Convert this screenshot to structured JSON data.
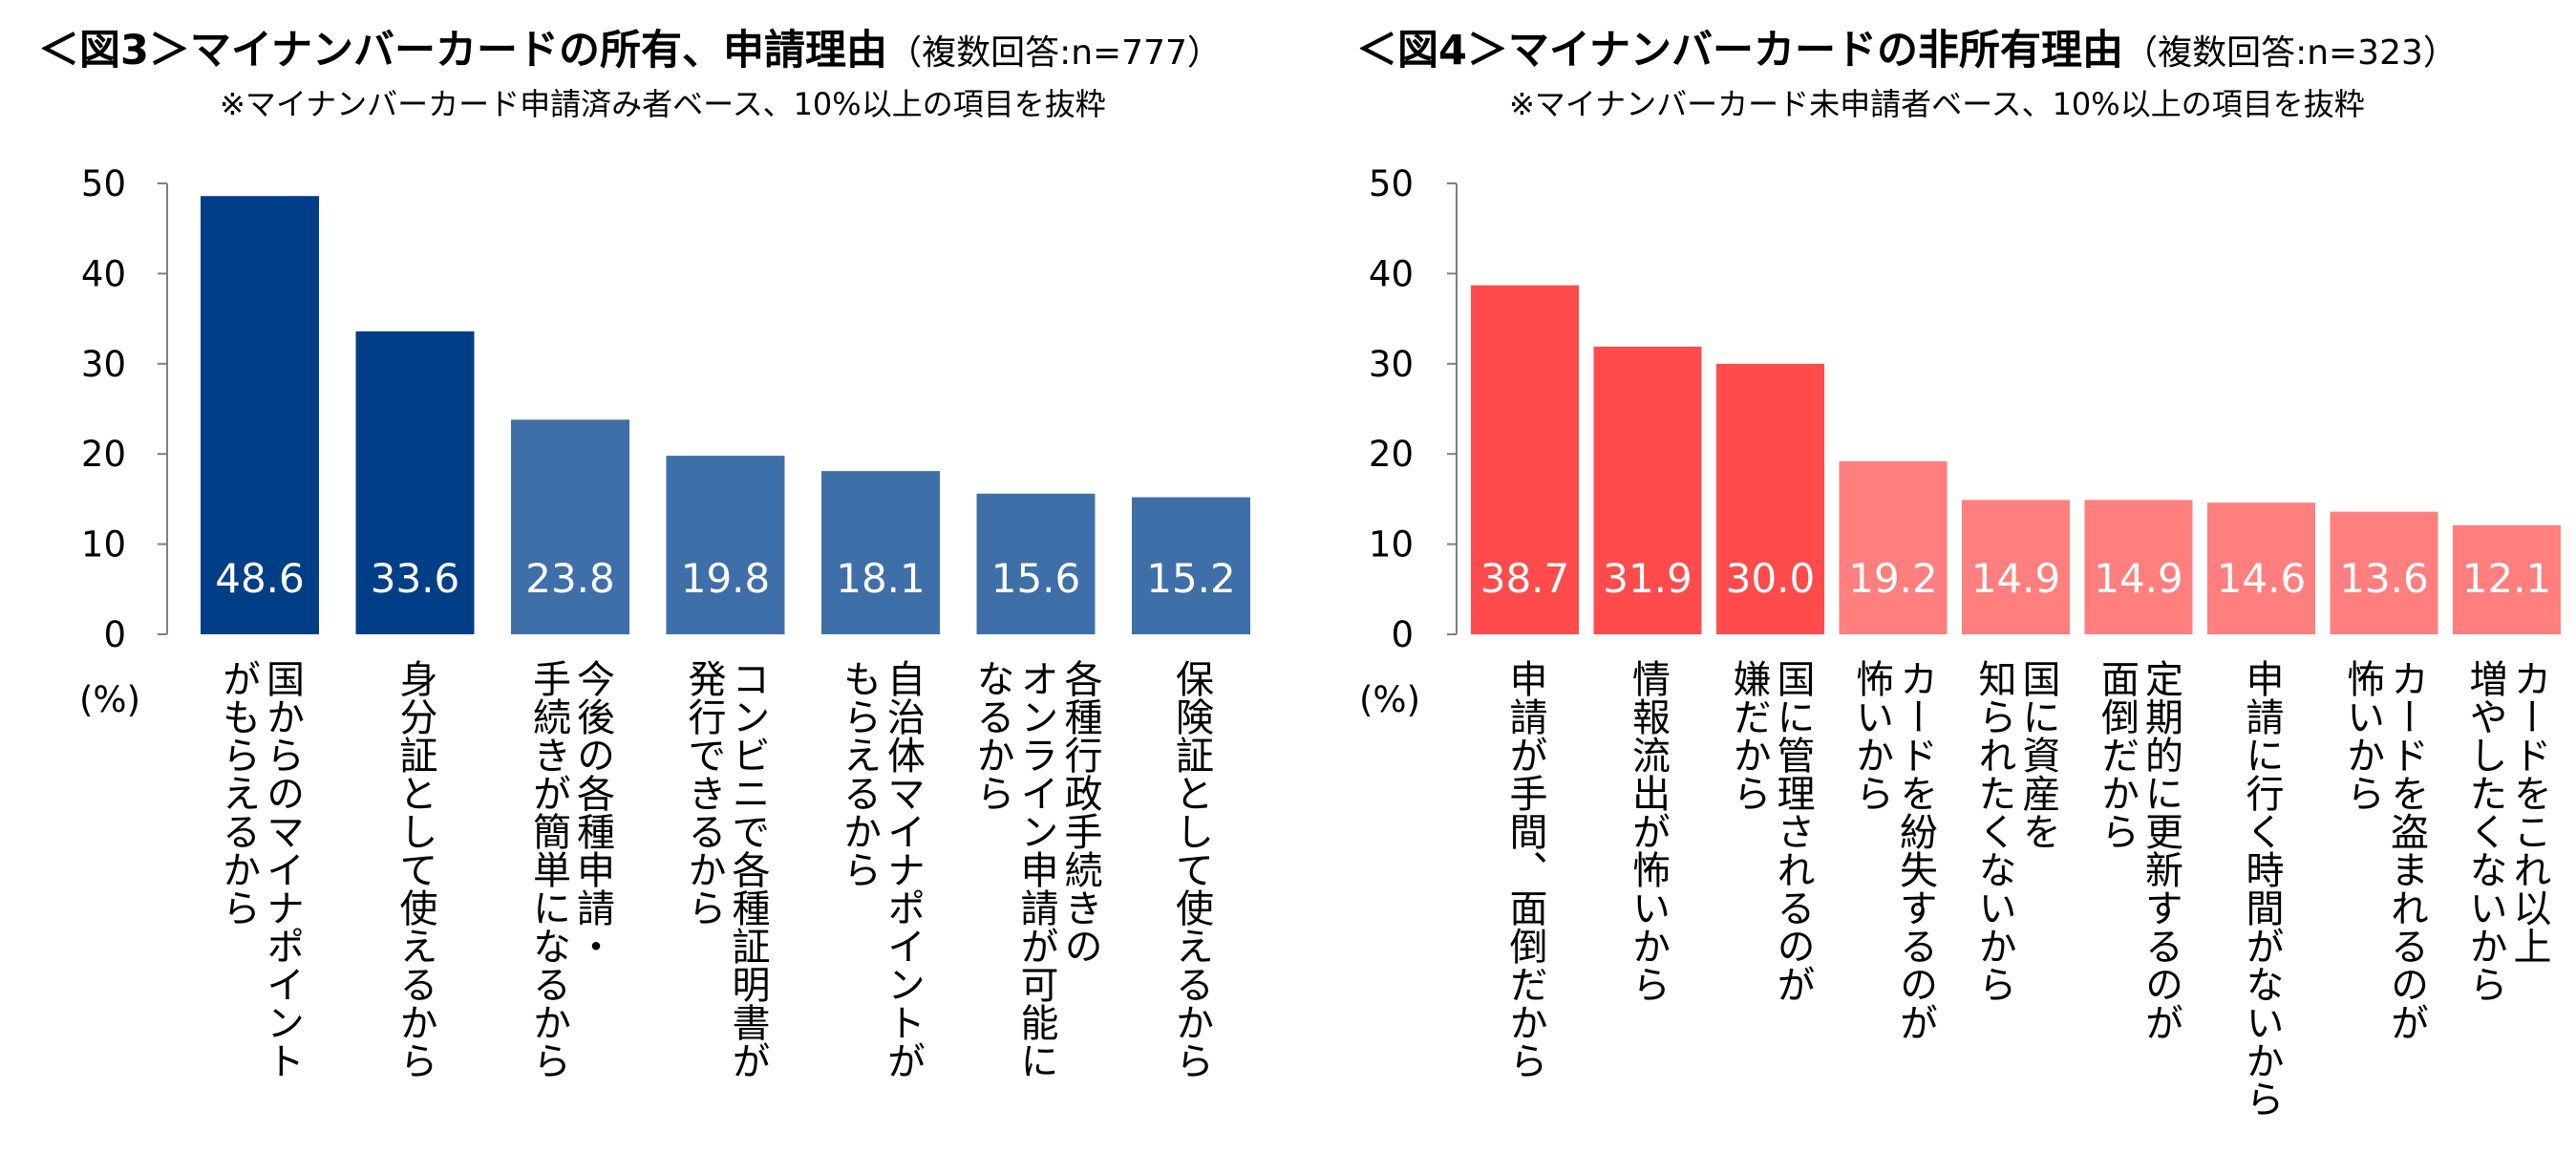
{
  "charts": [
    {
      "id": "left",
      "title": "＜図3＞マイナンバーカードの所有、申請理由",
      "title_sub": "（複数回答:n=777）",
      "note": "※マイナンバーカード申請済み者ベース、10%以上の項目を抜粋",
      "unit": "(%)",
      "y_ticks": [
        "0",
        "10",
        "20",
        "30",
        "40",
        "50"
      ]
    },
    {
      "id": "right",
      "title": "＜図4＞マイナンバーカードの非所有理由",
      "title_sub": "（複数回答:n=323）",
      "note": "※マイナンバーカード未申請者ベース、10%以上の項目を抜粋",
      "unit": "(%)",
      "y_ticks": [
        "0",
        "10",
        "20",
        "30",
        "40",
        "50"
      ]
    }
  ],
  "chart_data": [
    {
      "type": "bar",
      "title": "＜図3＞マイナンバーカードの所有、申請理由",
      "ylabel": "(%)",
      "ylim": [
        0,
        50
      ],
      "grid": false,
      "categories": [
        [
          "国からのマイナポイント",
          "がもらえるから"
        ],
        [
          "身分証として使えるから"
        ],
        [
          "今後の各種申請・",
          "手続きが簡単になるから"
        ],
        [
          "コンビニで各種証明書が",
          "発行できるから"
        ],
        [
          "自治体マイナポイントが",
          "もらえるから"
        ],
        [
          "各種行政手続きの",
          "オンライン申請が可能に",
          "なるから"
        ],
        [
          "保険証として使えるから"
        ]
      ],
      "values": [
        48.6,
        33.6,
        23.8,
        19.8,
        18.1,
        15.6,
        15.2
      ],
      "value_labels": [
        "48.6",
        "33.6",
        "23.8",
        "19.8",
        "18.1",
        "15.6",
        "15.2"
      ],
      "colors": [
        "#003f87",
        "#003f87",
        "#3f6fa8",
        "#3f6fa8",
        "#3f6fa8",
        "#3f6fa8",
        "#3f6fa8"
      ]
    },
    {
      "type": "bar",
      "title": "＜図4＞マイナンバーカードの非所有理由",
      "ylabel": "(%)",
      "ylim": [
        0,
        50
      ],
      "grid": false,
      "categories": [
        [
          "申請が手間、面倒だから"
        ],
        [
          "情報流出が怖いから"
        ],
        [
          "国に管理されるのが",
          "嫌だから"
        ],
        [
          "カードを紛失するのが",
          "怖いから"
        ],
        [
          "国に資産を",
          "知られたくないから"
        ],
        [
          "定期的に更新するのが",
          "面倒だから"
        ],
        [
          "申請に行く時間がないから"
        ],
        [
          "カードを盗まれるのが",
          "怖いから"
        ],
        [
          "カードをこれ以上",
          "増やしたくないから"
        ]
      ],
      "values": [
        38.7,
        31.9,
        30.0,
        19.2,
        14.9,
        14.9,
        14.6,
        13.6,
        12.1
      ],
      "value_labels": [
        "38.7",
        "31.9",
        "30.0",
        "19.2",
        "14.9",
        "14.9",
        "14.6",
        "13.6",
        "12.1"
      ],
      "colors": [
        "#ff4b4b",
        "#ff4b4b",
        "#ff4b4b",
        "#ff7f7f",
        "#ff7f7f",
        "#ff7f7f",
        "#ff7f7f",
        "#ff7f7f",
        "#ff7f7f"
      ]
    }
  ]
}
